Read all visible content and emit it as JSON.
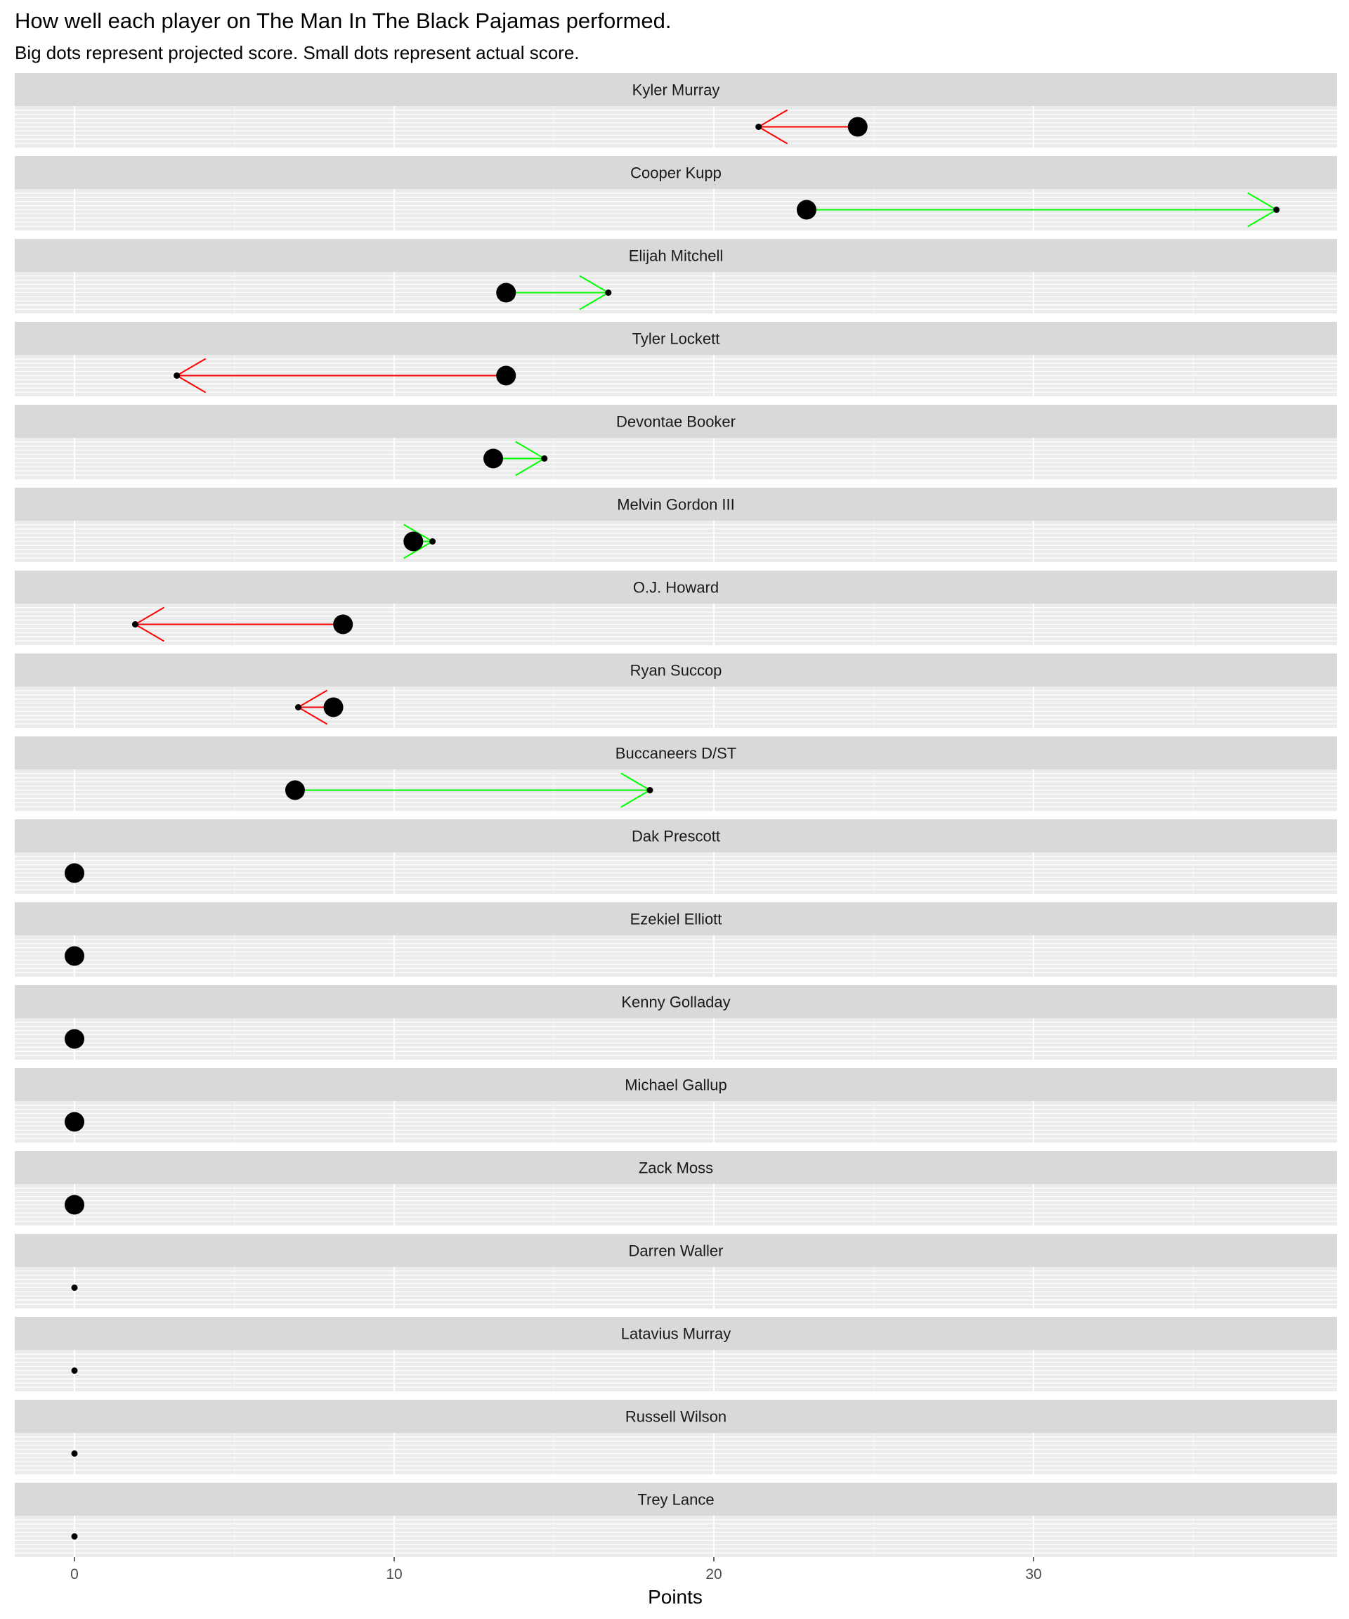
{
  "chart_data": {
    "type": "scatter",
    "title": "How well each player on The Man In The Black Pajamas performed.",
    "subtitle": "Big dots represent projected score.  Small dots represent actual score.",
    "xlabel": "Points",
    "ylabel": "",
    "xlim": [
      -1.86,
      39.5
    ],
    "x_ticks": [
      0,
      10,
      20,
      30
    ],
    "grid": true,
    "facets": "one panel per player",
    "arrow_colors": {
      "increase": "#00ff00",
      "decrease": "#ff0000"
    },
    "players": [
      {
        "name": "Kyler Murray",
        "projected": 24.5,
        "actual": 21.4
      },
      {
        "name": "Cooper Kupp",
        "projected": 22.9,
        "actual": 37.6
      },
      {
        "name": "Elijah Mitchell",
        "projected": 13.5,
        "actual": 16.7
      },
      {
        "name": "Tyler Lockett",
        "projected": 13.5,
        "actual": 3.2
      },
      {
        "name": "Devontae Booker",
        "projected": 13.1,
        "actual": 14.7
      },
      {
        "name": "Melvin Gordon III",
        "projected": 10.6,
        "actual": 11.2
      },
      {
        "name": "O.J. Howard",
        "projected": 8.4,
        "actual": 1.9
      },
      {
        "name": "Ryan Succop",
        "projected": 8.1,
        "actual": 7.0
      },
      {
        "name": "Buccaneers D/ST",
        "projected": 6.9,
        "actual": 18.0
      },
      {
        "name": "Dak Prescott",
        "projected": 0,
        "actual": null
      },
      {
        "name": "Ezekiel Elliott",
        "projected": 0,
        "actual": null
      },
      {
        "name": "Kenny Golladay",
        "projected": 0,
        "actual": null
      },
      {
        "name": "Michael Gallup",
        "projected": 0,
        "actual": null
      },
      {
        "name": "Zack Moss",
        "projected": 0,
        "actual": null
      },
      {
        "name": "Darren Waller",
        "projected": null,
        "actual": 0
      },
      {
        "name": "Latavius Murray",
        "projected": null,
        "actual": 0
      },
      {
        "name": "Russell Wilson",
        "projected": null,
        "actual": 0
      },
      {
        "name": "Trey Lance",
        "projected": null,
        "actual": 0
      }
    ]
  }
}
